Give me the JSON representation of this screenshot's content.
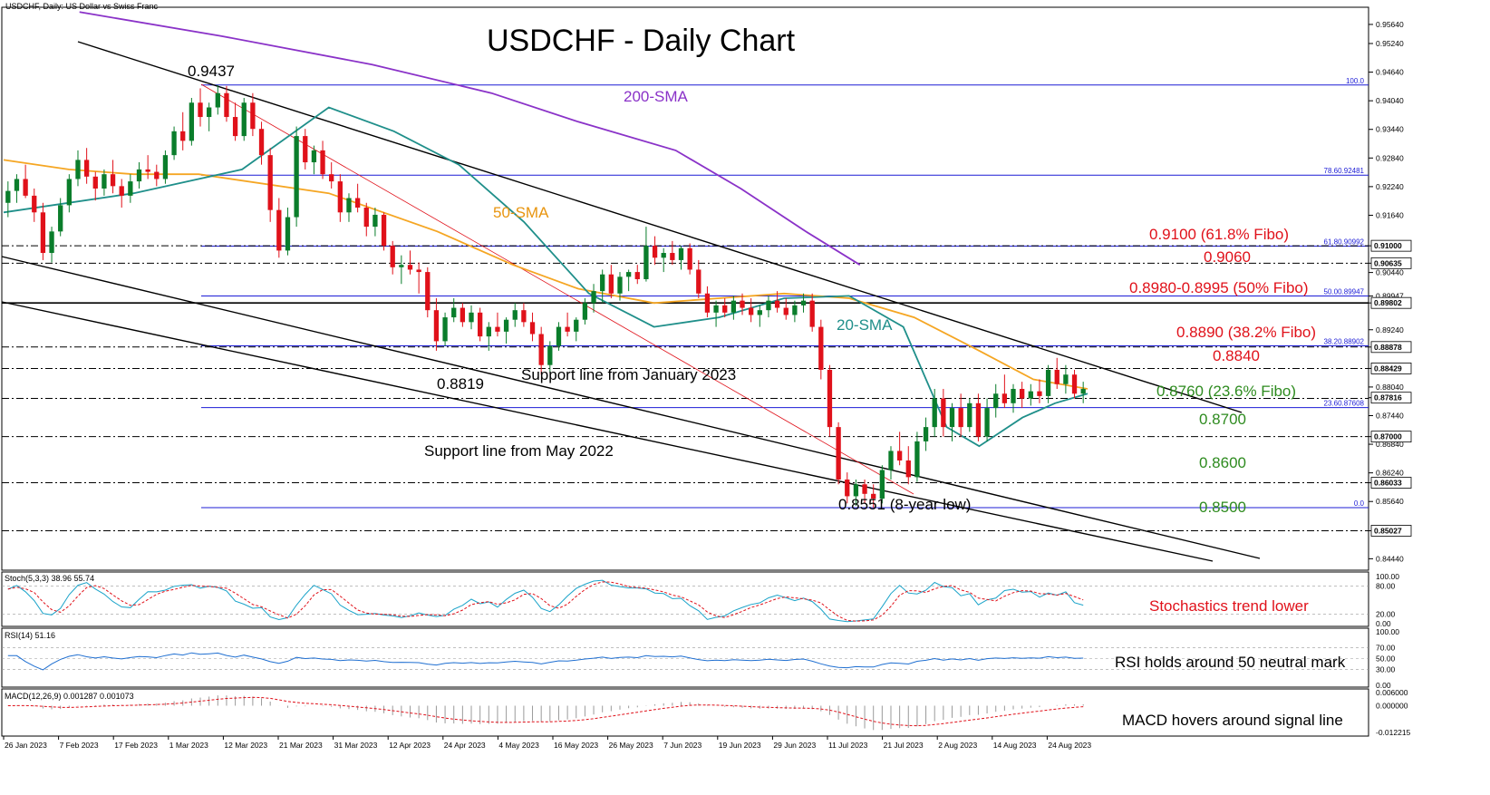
{
  "chart_data": {
    "type": "candlestick",
    "title": "USDCHF - Daily Chart",
    "header": "USDCHF, Daily:  US Dollar vs Swiss Franc",
    "colors": {
      "bull": "#0a7d2b",
      "bear": "#e0111a",
      "sma20": "#1f8f8a",
      "sma50": "#f5a623",
      "sma200": "#8a32c8",
      "fib": "#1c1cd6",
      "trend": "#000000",
      "red_label": "#e0111a",
      "green_label": "#2e8b1f",
      "stoch_main": "#1aa3c9",
      "stoch_signal": "#e0111a",
      "rsi": "#1f6fd1",
      "macd_hist": "#9a9a9a",
      "macd_signal": "#e0111a"
    },
    "ylim": [
      0.842,
      0.96
    ],
    "price_ticks": [
      "0.95640",
      "0.95240",
      "0.94640",
      "0.94040",
      "0.93440",
      "0.92840",
      "0.92240",
      "0.91640",
      "0.91000",
      "0.90635",
      "0.90440",
      "0.89947",
      "0.89802",
      "0.89240",
      "0.88878",
      "0.88429",
      "0.88040",
      "0.87816",
      "0.87440",
      "0.87000",
      "0.86840",
      "0.86240",
      "0.86033",
      "0.85640",
      "0.85027",
      "0.84440"
    ],
    "price_tick_values": [
      0.9564,
      0.9524,
      0.9464,
      0.9404,
      0.9344,
      0.9284,
      0.9224,
      0.9164,
      0.91,
      0.90635,
      0.9044,
      0.89947,
      0.89802,
      0.8924,
      0.88878,
      0.88429,
      0.8804,
      0.87816,
      0.8744,
      0.87,
      0.8684,
      0.8624,
      0.86033,
      0.8564,
      0.85027,
      0.8444
    ],
    "x_dates": [
      "26 Jan 2023",
      "7 Feb 2023",
      "17 Feb 2023",
      "1 Mar 2023",
      "12 Mar 2023",
      "21 Mar 2023",
      "31 Mar 2023",
      "12 Apr 2023",
      "24 Apr 2023",
      "4 May 2023",
      "16 May 2023",
      "26 May 2023",
      "7 Jun 2023",
      "19 Jun 2023",
      "29 Jun 2023",
      "11 Jul 2023",
      "21 Jul 2023",
      "2 Aug 2023",
      "14 Aug 2023",
      "24 Aug 2023"
    ],
    "candles": [
      [
        0.919,
        0.9235,
        0.916,
        0.9215
      ],
      [
        0.9215,
        0.925,
        0.919,
        0.924
      ],
      [
        0.924,
        0.927,
        0.92,
        0.9205
      ],
      [
        0.9205,
        0.922,
        0.915,
        0.917
      ],
      [
        0.917,
        0.919,
        0.907,
        0.9085
      ],
      [
        0.9085,
        0.914,
        0.9065,
        0.913
      ],
      [
        0.913,
        0.92,
        0.912,
        0.9185
      ],
      [
        0.9185,
        0.925,
        0.917,
        0.924
      ],
      [
        0.924,
        0.93,
        0.9225,
        0.928
      ],
      [
        0.928,
        0.9305,
        0.923,
        0.9245
      ],
      [
        0.9245,
        0.9255,
        0.9195,
        0.922
      ],
      [
        0.922,
        0.926,
        0.9205,
        0.925
      ],
      [
        0.925,
        0.928,
        0.921,
        0.9225
      ],
      [
        0.9225,
        0.924,
        0.918,
        0.9205
      ],
      [
        0.9205,
        0.925,
        0.919,
        0.9235
      ],
      [
        0.9235,
        0.9275,
        0.922,
        0.926
      ],
      [
        0.926,
        0.929,
        0.924,
        0.9255
      ],
      [
        0.9255,
        0.927,
        0.9225,
        0.924
      ],
      [
        0.924,
        0.93,
        0.923,
        0.929
      ],
      [
        0.929,
        0.935,
        0.928,
        0.934
      ],
      [
        0.934,
        0.938,
        0.93,
        0.932
      ],
      [
        0.932,
        0.941,
        0.931,
        0.94
      ],
      [
        0.94,
        0.943,
        0.935,
        0.937
      ],
      [
        0.937,
        0.94,
        0.934,
        0.939
      ],
      [
        0.939,
        0.9437,
        0.9375,
        0.942
      ],
      [
        0.942,
        0.9435,
        0.936,
        0.937
      ],
      [
        0.937,
        0.94,
        0.932,
        0.933
      ],
      [
        0.933,
        0.941,
        0.932,
        0.94
      ],
      [
        0.94,
        0.942,
        0.933,
        0.9345
      ],
      [
        0.9345,
        0.936,
        0.927,
        0.929
      ],
      [
        0.929,
        0.9305,
        0.915,
        0.9175
      ],
      [
        0.9175,
        0.92,
        0.9075,
        0.909
      ],
      [
        0.909,
        0.918,
        0.908,
        0.916
      ],
      [
        0.916,
        0.935,
        0.914,
        0.933
      ],
      [
        0.933,
        0.9345,
        0.926,
        0.9275
      ],
      [
        0.9275,
        0.931,
        0.925,
        0.93
      ],
      [
        0.93,
        0.932,
        0.924,
        0.925
      ],
      [
        0.925,
        0.9275,
        0.922,
        0.9235
      ],
      [
        0.9235,
        0.925,
        0.915,
        0.917
      ],
      [
        0.917,
        0.921,
        0.915,
        0.92
      ],
      [
        0.92,
        0.923,
        0.917,
        0.918
      ],
      [
        0.918,
        0.919,
        0.912,
        0.914
      ],
      [
        0.914,
        0.918,
        0.912,
        0.9165
      ],
      [
        0.9165,
        0.917,
        0.909,
        0.91
      ],
      [
        0.91,
        0.911,
        0.904,
        0.9055
      ],
      [
        0.9055,
        0.908,
        0.902,
        0.906
      ],
      [
        0.906,
        0.909,
        0.904,
        0.905
      ],
      [
        0.905,
        0.9065,
        0.9,
        0.9045
      ],
      [
        0.9045,
        0.9055,
        0.895,
        0.8965
      ],
      [
        0.8965,
        0.899,
        0.888,
        0.89
      ],
      [
        0.89,
        0.896,
        0.889,
        0.895
      ],
      [
        0.895,
        0.899,
        0.894,
        0.897
      ],
      [
        0.897,
        0.898,
        0.893,
        0.894
      ],
      [
        0.894,
        0.8975,
        0.8925,
        0.896
      ],
      [
        0.896,
        0.897,
        0.89,
        0.891
      ],
      [
        0.891,
        0.894,
        0.888,
        0.893
      ],
      [
        0.893,
        0.896,
        0.891,
        0.892
      ],
      [
        0.892,
        0.895,
        0.8895,
        0.8945
      ],
      [
        0.8945,
        0.898,
        0.893,
        0.8965
      ],
      [
        0.8965,
        0.898,
        0.893,
        0.894
      ],
      [
        0.894,
        0.896,
        0.89,
        0.8915
      ],
      [
        0.8915,
        0.893,
        0.883,
        0.885
      ],
      [
        0.885,
        0.89,
        0.8835,
        0.889
      ],
      [
        0.889,
        0.894,
        0.888,
        0.893
      ],
      [
        0.893,
        0.896,
        0.891,
        0.892
      ],
      [
        0.892,
        0.895,
        0.89,
        0.8945
      ],
      [
        0.8945,
        0.899,
        0.8935,
        0.898
      ],
      [
        0.898,
        0.902,
        0.896,
        0.9005
      ],
      [
        0.9005,
        0.905,
        0.898,
        0.904
      ],
      [
        0.904,
        0.906,
        0.899,
        0.9
      ],
      [
        0.9,
        0.9045,
        0.8985,
        0.9035
      ],
      [
        0.9035,
        0.905,
        0.9005,
        0.9045
      ],
      [
        0.9045,
        0.906,
        0.902,
        0.903
      ],
      [
        0.903,
        0.914,
        0.9025,
        0.91
      ],
      [
        0.91,
        0.912,
        0.906,
        0.9075
      ],
      [
        0.9075,
        0.9095,
        0.9045,
        0.9085
      ],
      [
        0.9085,
        0.911,
        0.906,
        0.907
      ],
      [
        0.907,
        0.91,
        0.905,
        0.9095
      ],
      [
        0.9095,
        0.9105,
        0.904,
        0.905
      ],
      [
        0.905,
        0.907,
        0.899,
        0.9
      ],
      [
        0.9,
        0.9015,
        0.895,
        0.896
      ],
      [
        0.896,
        0.8985,
        0.893,
        0.8975
      ],
      [
        0.8975,
        0.899,
        0.895,
        0.896
      ],
      [
        0.896,
        0.8995,
        0.8945,
        0.8985
      ],
      [
        0.8985,
        0.9,
        0.8955,
        0.897
      ],
      [
        0.897,
        0.899,
        0.894,
        0.8955
      ],
      [
        0.8955,
        0.8975,
        0.893,
        0.8965
      ],
      [
        0.8965,
        0.8995,
        0.895,
        0.8985
      ],
      [
        0.8985,
        0.9005,
        0.896,
        0.897
      ],
      [
        0.897,
        0.899,
        0.8945,
        0.8955
      ],
      [
        0.8955,
        0.8985,
        0.894,
        0.8975
      ],
      [
        0.8975,
        0.9,
        0.896,
        0.8985
      ],
      [
        0.8985,
        0.9,
        0.892,
        0.893
      ],
      [
        0.893,
        0.8945,
        0.882,
        0.884
      ],
      [
        0.884,
        0.885,
        0.87,
        0.872
      ],
      [
        0.872,
        0.873,
        0.86,
        0.861
      ],
      [
        0.861,
        0.8625,
        0.856,
        0.8575
      ],
      [
        0.8575,
        0.861,
        0.8555,
        0.86
      ],
      [
        0.86,
        0.861,
        0.856,
        0.858
      ],
      [
        0.858,
        0.86,
        0.8551,
        0.857
      ],
      [
        0.857,
        0.864,
        0.856,
        0.863
      ],
      [
        0.863,
        0.868,
        0.861,
        0.867
      ],
      [
        0.867,
        0.871,
        0.864,
        0.865
      ],
      [
        0.865,
        0.868,
        0.86,
        0.8615
      ],
      [
        0.8615,
        0.871,
        0.8605,
        0.869
      ],
      [
        0.869,
        0.874,
        0.867,
        0.872
      ],
      [
        0.872,
        0.88,
        0.87,
        0.878
      ],
      [
        0.878,
        0.88,
        0.87,
        0.872
      ],
      [
        0.872,
        0.877,
        0.869,
        0.876
      ],
      [
        0.876,
        0.879,
        0.87,
        0.872
      ],
      [
        0.872,
        0.878,
        0.871,
        0.877
      ],
      [
        0.877,
        0.879,
        0.869,
        0.87
      ],
      [
        0.87,
        0.878,
        0.869,
        0.876
      ],
      [
        0.876,
        0.881,
        0.874,
        0.879
      ],
      [
        0.879,
        0.883,
        0.876,
        0.877
      ],
      [
        0.877,
        0.881,
        0.875,
        0.88
      ],
      [
        0.88,
        0.8815,
        0.876,
        0.878
      ],
      [
        0.878,
        0.881,
        0.8765,
        0.8795
      ],
      [
        0.8795,
        0.882,
        0.877,
        0.8785
      ],
      [
        0.8785,
        0.885,
        0.877,
        0.884
      ],
      [
        0.884,
        0.8865,
        0.88,
        0.881
      ],
      [
        0.881,
        0.885,
        0.879,
        0.883
      ],
      [
        0.883,
        0.884,
        0.878,
        0.879
      ],
      [
        0.879,
        0.8815,
        0.877,
        0.88
      ]
    ],
    "sma20": [
      [
        0.917,
        0
      ],
      [
        0.921,
        0.12
      ],
      [
        0.926,
        0.22
      ],
      [
        0.939,
        0.3
      ],
      [
        0.934,
        0.36
      ],
      [
        0.927,
        0.42
      ],
      [
        0.915,
        0.48
      ],
      [
        0.9,
        0.54
      ],
      [
        0.893,
        0.6
      ],
      [
        0.895,
        0.66
      ],
      [
        0.899,
        0.72
      ],
      [
        0.8995,
        0.78
      ],
      [
        0.893,
        0.83
      ],
      [
        0.872,
        0.87
      ],
      [
        0.868,
        0.9
      ],
      [
        0.874,
        0.94
      ],
      [
        0.877,
        0.97
      ],
      [
        0.879,
        1.0
      ]
    ],
    "sma50": [
      [
        0.928,
        0
      ],
      [
        0.926,
        0.06
      ],
      [
        0.925,
        0.12
      ],
      [
        0.925,
        0.18
      ],
      [
        0.921,
        0.3
      ],
      [
        0.913,
        0.4
      ],
      [
        0.906,
        0.47
      ],
      [
        0.901,
        0.53
      ],
      [
        0.898,
        0.6
      ],
      [
        0.899,
        0.66
      ],
      [
        0.9,
        0.72
      ],
      [
        0.899,
        0.78
      ],
      [
        0.895,
        0.84
      ],
      [
        0.888,
        0.9
      ],
      [
        0.882,
        0.95
      ],
      [
        0.88,
        1.0
      ]
    ],
    "sma200": [
      [
        0.959,
        0.07
      ],
      [
        0.954,
        0.2
      ],
      [
        0.948,
        0.34
      ],
      [
        0.942,
        0.45
      ],
      [
        0.936,
        0.53
      ],
      [
        0.93,
        0.62
      ],
      [
        0.922,
        0.68
      ],
      [
        0.913,
        0.74
      ],
      [
        0.906,
        0.79
      ]
    ],
    "fib_levels": [
      {
        "value": 0.9437,
        "label": "100.0"
      },
      {
        "value": 0.92481,
        "label": "78.60.92481"
      },
      {
        "value": 0.90992,
        "label": "61.80.90992"
      },
      {
        "value": 0.89947,
        "label": "50.00.89947"
      },
      {
        "value": 0.88902,
        "label": "38.20.88902"
      },
      {
        "value": 0.87608,
        "label": "23.60.87608"
      },
      {
        "value": 0.8551,
        "label": "0.0"
      }
    ],
    "dashed_levels": [
      0.91,
      0.90635,
      0.88878,
      0.88429,
      0.878,
      0.87,
      0.86033,
      0.85027
    ],
    "solid_level": 0.89802,
    "marker_tags": [
      "0.91000",
      "0.90635",
      "0.89802",
      "0.88878",
      "0.88429",
      "0.87816",
      "0.87000",
      "0.86033",
      "0.85027"
    ],
    "annotations": {
      "hi": "0.9437",
      "lo_a": "0.8819",
      "lo_b": "0.8551 (8-year low)",
      "sma200": "200-SMA",
      "sma50": "50-SMA",
      "sma20": "20-SMA",
      "sup_jan": "Support line from January 2023",
      "sup_may": "Support line from May 2022",
      "r1": "0.9100 (61.8% Fibo)",
      "r2": "0.9060",
      "r3": "0.8980-0.8995 (50% Fibo)",
      "r4": "0.8890  (38.2% Fibo)",
      "r5": "0.8840",
      "g1": "0.8760 (23.6% Fibo)",
      "g2": "0.8700",
      "g3": "0.8600",
      "g4": "0.8500"
    },
    "stoch": {
      "header": "Stoch(5,3,3) 38.96 55.74",
      "note": "Stochastics trend lower",
      "ticks": [
        "100.00",
        "80.00",
        "20.00",
        "0.00"
      ],
      "tick_values": [
        100,
        80,
        20,
        0
      ]
    },
    "rsi": {
      "header": "RSI(14) 51.16",
      "note": "RSI holds around 50 neutral mark",
      "ticks": [
        "100.00",
        "70.00",
        "50.00",
        "30.00",
        "0.00"
      ],
      "tick_values": [
        100,
        70,
        50,
        30,
        0
      ]
    },
    "macd": {
      "header": "MACD(12,26,9) 0.001287 0.001073",
      "note": "MACD hovers around signal line",
      "ticks": [
        "0.006000",
        "0.000000",
        "-0.012215"
      ],
      "tick_values": [
        0.006,
        0,
        -0.012215
      ]
    }
  }
}
